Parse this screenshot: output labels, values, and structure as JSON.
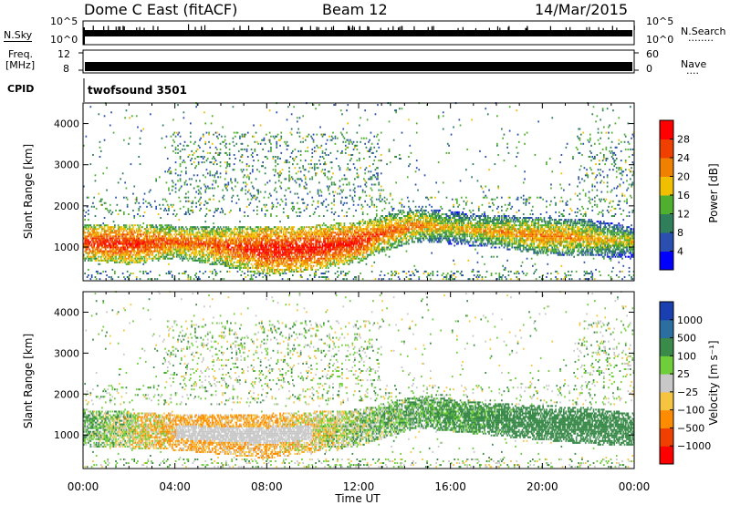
{
  "header": {
    "radar": "Dome C East (fitACF)",
    "beam": "Beam 12",
    "date": "14/Mar/2015"
  },
  "top_panels": {
    "nsky_label": "N.Sky",
    "nsearch_label": "N.Search",
    "nsky_ticks": [
      "10^5",
      "10^0"
    ],
    "freq_label_1": "Freq.",
    "freq_label_2": "[MHz]",
    "freq_ticks_left": [
      "12",
      "8"
    ],
    "nave_label": "Nave",
    "nave_ticks": [
      "60",
      "0"
    ],
    "cpid_label": "CPID",
    "cpid_text": "twofsound  3501"
  },
  "colors": {
    "power_scale": [
      "#0000ff",
      "#2a4fb0",
      "#2f7f5a",
      "#4fb02f",
      "#f0c000",
      "#f08000",
      "#f04000",
      "#ff0000"
    ],
    "velocity_scale": [
      "#ff0000",
      "#f04000",
      "#ff8c00",
      "#f5c542",
      "#c8c8c8",
      "#6fce3a",
      "#3a8a4a",
      "#2a6fa0",
      "#1a3fb0"
    ]
  },
  "chart_data": [
    {
      "type": "heatmap",
      "name": "power",
      "ylabel": "Slant Range [km]",
      "ylim": [
        180,
        4500
      ],
      "yticks": [
        1000,
        2000,
        3000,
        4000
      ],
      "xticks": [
        "00:00",
        "04:00",
        "08:00",
        "12:00",
        "16:00",
        "20:00",
        "00:00"
      ],
      "xlim_hours": [
        0,
        24
      ],
      "colorbar_label": "Power [dB]",
      "colorbar_ticks": [
        "28",
        "24",
        "20",
        "16",
        "12",
        "8",
        "4"
      ],
      "colorbar_range": [
        0,
        30
      ],
      "main_band": [
        {
          "t": 0,
          "center": 1100,
          "width": 450,
          "value": 26
        },
        {
          "t": 2,
          "center": 1050,
          "width": 500,
          "value": 27
        },
        {
          "t": 4,
          "center": 1100,
          "width": 400,
          "value": 24
        },
        {
          "t": 6,
          "center": 1000,
          "width": 500,
          "value": 24
        },
        {
          "t": 8,
          "center": 900,
          "width": 600,
          "value": 28
        },
        {
          "t": 10,
          "center": 950,
          "width": 550,
          "value": 28
        },
        {
          "t": 12,
          "center": 1100,
          "width": 500,
          "value": 27
        },
        {
          "t": 13,
          "center": 1300,
          "width": 450,
          "value": 24
        },
        {
          "t": 14.5,
          "center": 1500,
          "width": 400,
          "value": 22
        },
        {
          "t": 16,
          "center": 1450,
          "width": 400,
          "value": 18
        },
        {
          "t": 18,
          "center": 1350,
          "width": 400,
          "value": 20
        },
        {
          "t": 20,
          "center": 1250,
          "width": 450,
          "value": 22
        },
        {
          "t": 22,
          "center": 1200,
          "width": 450,
          "value": 20
        },
        {
          "t": 24,
          "center": 1100,
          "width": 400,
          "value": 16
        }
      ]
    },
    {
      "type": "heatmap",
      "name": "velocity",
      "ylabel": "Slant Range [km]",
      "ylim": [
        180,
        4500
      ],
      "yticks": [
        1000,
        2000,
        3000,
        4000
      ],
      "xticks": [
        "00:00",
        "04:00",
        "08:00",
        "12:00",
        "16:00",
        "20:00",
        "00:00"
      ],
      "xlabel": "Time UT",
      "colorbar_label": "Velocity [m s⁻¹]",
      "colorbar_ticks": [
        "1000",
        "500",
        "100",
        "25",
        "−25",
        "−100",
        "−500",
        "−1000"
      ],
      "colorbar_range": [
        -1000,
        1000
      ],
      "main_band": [
        {
          "t": 0,
          "center": 1150,
          "width": 450,
          "value": 100
        },
        {
          "t": 4,
          "center": 1050,
          "width": 450,
          "value": -100
        },
        {
          "t": 8,
          "center": 950,
          "width": 550,
          "value": -100
        },
        {
          "t": 12,
          "center": 1150,
          "width": 450,
          "value": 50
        },
        {
          "t": 14.5,
          "center": 1550,
          "width": 400,
          "value": 100
        },
        {
          "t": 18,
          "center": 1350,
          "width": 400,
          "value": 200
        },
        {
          "t": 22,
          "center": 1200,
          "width": 450,
          "value": 300
        },
        {
          "t": 24,
          "center": 1100,
          "width": 400,
          "value": 300
        }
      ]
    }
  ]
}
